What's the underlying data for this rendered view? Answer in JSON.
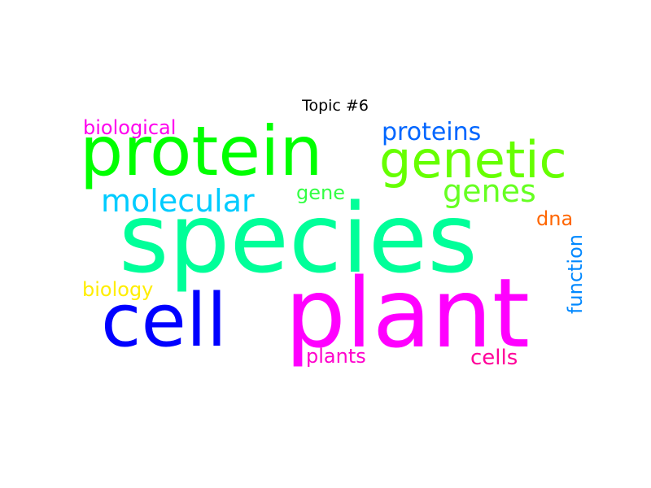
{
  "title": "Topic #6",
  "words": [
    {
      "text": "species",
      "color": "#00ff99"
    },
    {
      "text": "plant",
      "color": "#ff00ff"
    },
    {
      "text": "protein",
      "color": "#00ff00"
    },
    {
      "text": "cell",
      "color": "#0000ff"
    },
    {
      "text": "genetic",
      "color": "#66ff00"
    },
    {
      "text": "molecular",
      "color": "#00ccff"
    },
    {
      "text": "genes",
      "color": "#66ff22"
    },
    {
      "text": "proteins",
      "color": "#0066ff"
    },
    {
      "text": "biological",
      "color": "#ff00ee"
    },
    {
      "text": "gene",
      "color": "#33ff44"
    },
    {
      "text": "dna",
      "color": "#ff6600"
    },
    {
      "text": "biology",
      "color": "#ffee00"
    },
    {
      "text": "function",
      "color": "#0088ff"
    },
    {
      "text": "plants",
      "color": "#ff00cc"
    },
    {
      "text": "cells",
      "color": "#ff0099"
    }
  ]
}
